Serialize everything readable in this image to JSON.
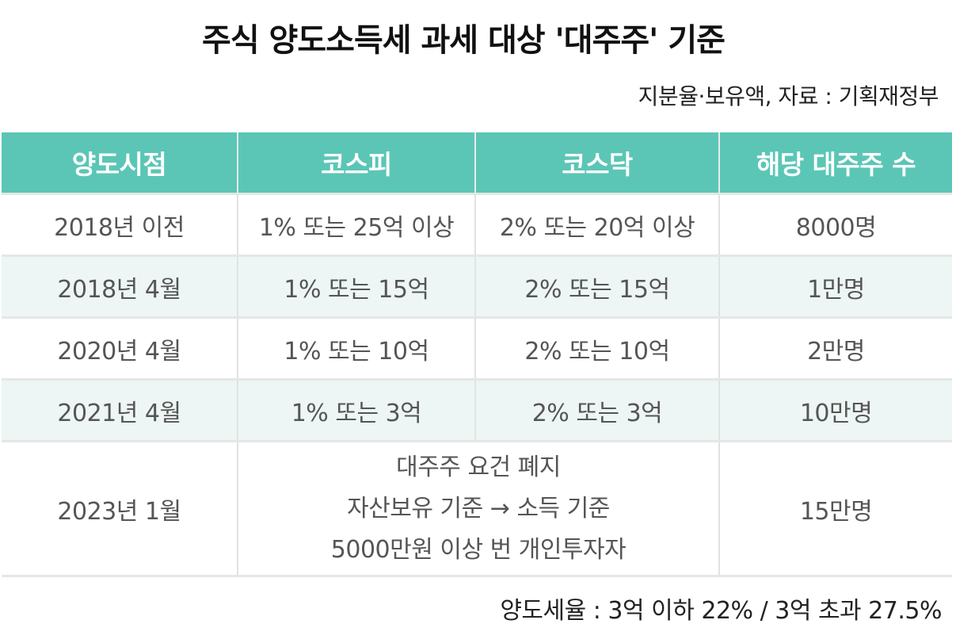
{
  "title": "주식 양도소득세 과세 대상 '대주주' 기준",
  "source": "지분율·보유액, 자료 : 기획재정부",
  "table": {
    "headers": [
      "양도시점",
      "코스피",
      "코스닥",
      "해당 대주주 수"
    ],
    "rows": [
      {
        "date": "2018년 이전",
        "kospi": "1% 또는 25억 이상",
        "kosdaq": "2% 또는 20억 이상",
        "count": "8000명"
      },
      {
        "date": "2018년 4월",
        "kospi": "1% 또는 15억",
        "kosdaq": "2% 또는 15억",
        "count": "1만명"
      },
      {
        "date": "2020년 4월",
        "kospi": "1% 또는 10억",
        "kosdaq": "2% 또는 10억",
        "count": "2만명"
      },
      {
        "date": "2021년 4월",
        "kospi": "1% 또는 3억",
        "kosdaq": "2% 또는 3억",
        "count": "10만명"
      }
    ],
    "last_row": {
      "date": "2023년 1월",
      "merged_lines": [
        "대주주 요건 폐지",
        "자산보유 기준 → 소득 기준",
        "5000만원 이상 번 개인투자자"
      ],
      "count": "15만명"
    }
  },
  "footer": "양도세율 : 3억 이하 22% / 3억 초과 27.5%",
  "colors": {
    "header_bg": "#5bc6b6",
    "alt_row_bg": "#edf6f4"
  }
}
